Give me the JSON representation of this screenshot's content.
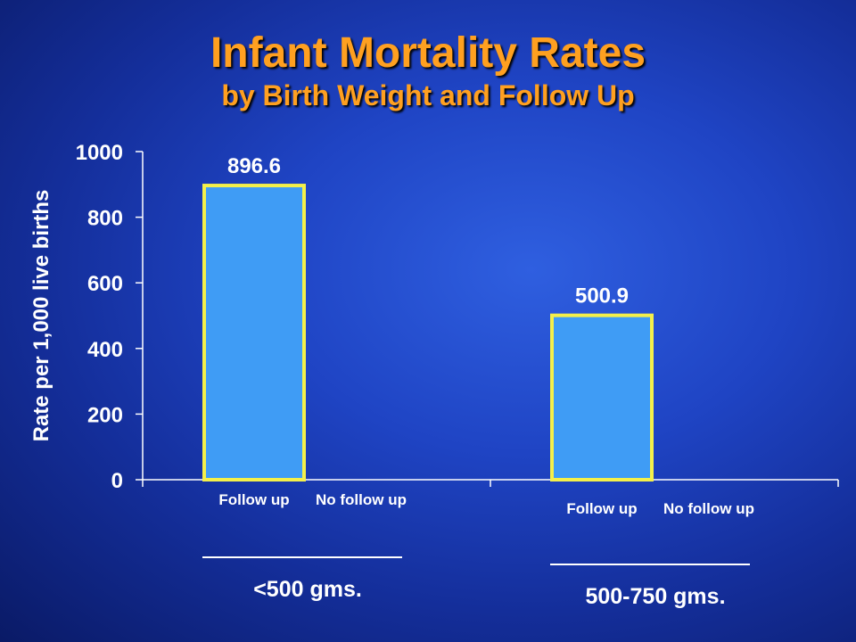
{
  "title": "Infant Mortality Rates",
  "subtitle": "by Birth Weight and Follow Up",
  "colors": {
    "background": "#1a3bb5",
    "title": "#ffa020",
    "bar_fill": "#3f9cf5",
    "bar_stroke": "#f4f04a",
    "text": "#ffffff"
  },
  "chart_data": {
    "type": "bar",
    "title": "Infant Mortality Rates",
    "subtitle": "by Birth Weight and Follow Up",
    "ylabel": "Rate per 1,000 live births",
    "xlabel": "",
    "ylim": [
      0,
      1000
    ],
    "yticks": [
      0,
      200,
      400,
      600,
      800,
      1000
    ],
    "grid": false,
    "groups": [
      {
        "label": "<500 gms.",
        "categories": [
          "Follow up",
          "No follow up"
        ],
        "values": [
          896.6,
          null
        ],
        "data_labels": [
          "896.6",
          ""
        ]
      },
      {
        "label": "500-750 gms.",
        "categories": [
          "Follow up",
          "No follow up"
        ],
        "values": [
          500.9,
          null
        ],
        "data_labels": [
          "500.9",
          ""
        ]
      }
    ]
  }
}
